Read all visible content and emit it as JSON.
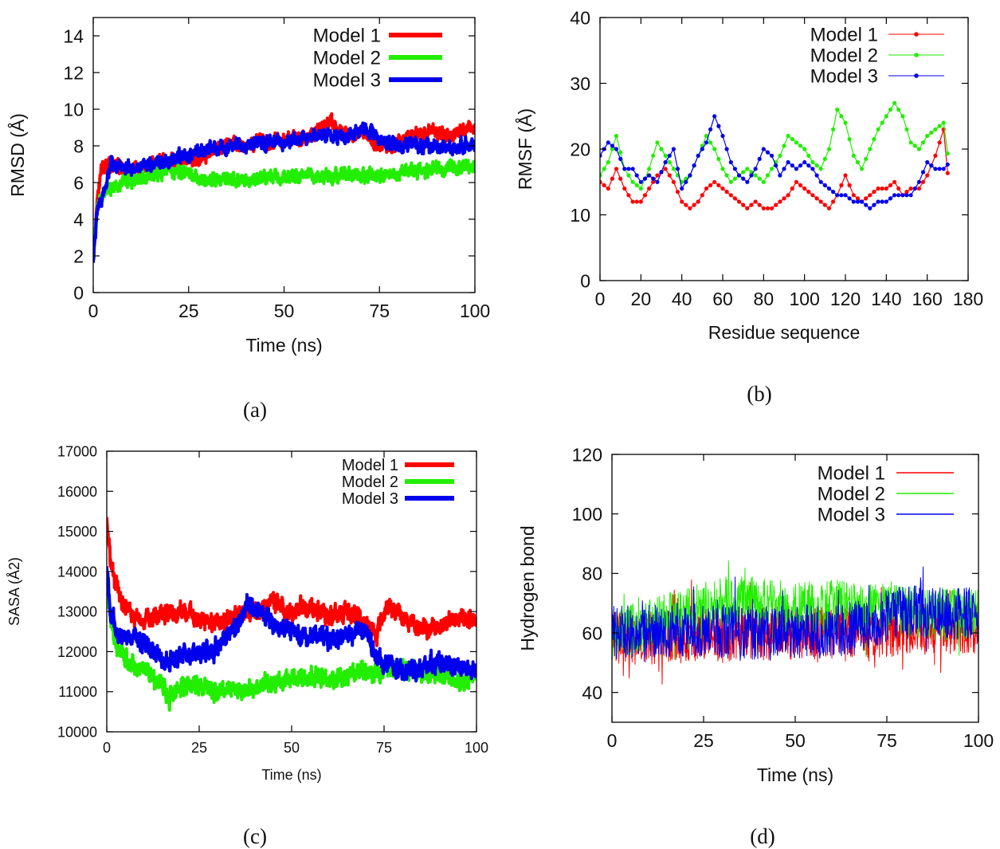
{
  "colors": {
    "model1": "#ff0000",
    "model2": "#22ee00",
    "model3": "#0000ee",
    "axis": "#000000"
  },
  "panels": [
    {
      "id": "a",
      "caption": "(a)",
      "chart_data": {
        "type": "line",
        "xlabel": "Time (ns)",
        "ylabel": "RMSD (Å)",
        "xlim": [
          0,
          100
        ],
        "ylim": [
          0,
          15
        ],
        "xticks": [
          0,
          25,
          50,
          75,
          100
        ],
        "yticks": [
          0,
          2,
          4,
          6,
          8,
          10,
          12,
          14
        ],
        "legend_position": "top-right",
        "legend_style": "thick-line",
        "series": [
          {
            "name": "Model 1",
            "color": "#ff0000",
            "x": [
              0,
              1,
              2,
              3,
              4,
              5,
              6,
              8,
              10,
              12,
              14,
              16,
              18,
              20,
              22,
              25,
              28,
              30,
              33,
              36,
              40,
              43,
              46,
              50,
              53,
              56,
              58,
              60,
              62,
              64,
              66,
              68,
              70,
              72,
              75,
              78,
              80,
              83,
              86,
              90,
              93,
              96,
              100
            ],
            "y": [
              1.8,
              5.0,
              6.6,
              6.9,
              7.0,
              6.8,
              7.0,
              6.7,
              6.6,
              6.8,
              6.9,
              7.0,
              7.2,
              7.4,
              7.1,
              7.2,
              7.3,
              7.6,
              7.9,
              8.2,
              7.9,
              8.3,
              8.2,
              8.2,
              8.5,
              8.3,
              8.8,
              9.1,
              9.3,
              8.9,
              8.6,
              8.5,
              8.8,
              8.5,
              8.0,
              7.9,
              8.3,
              8.5,
              8.7,
              8.8,
              8.6,
              8.8,
              9.0
            ]
          },
          {
            "name": "Model 2",
            "color": "#22ee00",
            "x": [
              0,
              1,
              2,
              4,
              6,
              8,
              10,
              14,
              18,
              20,
              25,
              28,
              30,
              35,
              40,
              45,
              50,
              55,
              60,
              65,
              70,
              75,
              80,
              85,
              90,
              95,
              100
            ],
            "y": [
              1.8,
              4.5,
              5.2,
              5.6,
              5.8,
              6.0,
              6.1,
              6.3,
              6.5,
              6.7,
              6.4,
              6.2,
              6.1,
              6.2,
              6.1,
              6.3,
              6.2,
              6.4,
              6.3,
              6.5,
              6.4,
              6.4,
              6.5,
              6.6,
              6.7,
              6.8,
              6.9
            ]
          },
          {
            "name": "Model 3",
            "color": "#0000ee",
            "x": [
              0,
              1,
              2,
              3,
              4,
              5,
              6,
              8,
              10,
              12,
              15,
              18,
              20,
              25,
              30,
              35,
              40,
              45,
              50,
              55,
              60,
              63,
              66,
              70,
              73,
              76,
              80,
              85,
              90,
              95,
              100
            ],
            "y": [
              1.6,
              4.4,
              5.0,
              5.6,
              6.4,
              7.2,
              7.0,
              6.8,
              6.6,
              6.8,
              7.0,
              7.1,
              7.3,
              7.5,
              7.8,
              7.9,
              8.0,
              8.1,
              8.2,
              8.4,
              8.6,
              8.5,
              8.5,
              8.9,
              8.7,
              8.2,
              8.0,
              8.1,
              8.0,
              7.9,
              8.0
            ]
          }
        ]
      }
    },
    {
      "id": "b",
      "caption": "(b)",
      "chart_data": {
        "type": "line",
        "xlabel": "Residue sequence",
        "ylabel": "RMSF (Å)",
        "xlim": [
          0,
          180
        ],
        "ylim": [
          0,
          40
        ],
        "xticks": [
          0,
          20,
          40,
          60,
          80,
          100,
          120,
          140,
          160,
          180
        ],
        "yticks": [
          0,
          10,
          20,
          30,
          40
        ],
        "legend_position": "top-right",
        "legend_style": "line-point",
        "series": [
          {
            "name": "Model 1",
            "color": "#ff0000",
            "x": [
              0,
              4,
              8,
              12,
              16,
              20,
              24,
              28,
              32,
              36,
              40,
              44,
              48,
              52,
              56,
              60,
              64,
              68,
              72,
              76,
              80,
              84,
              88,
              92,
              96,
              100,
              104,
              108,
              112,
              116,
              120,
              124,
              128,
              132,
              136,
              140,
              144,
              148,
              152,
              156,
              160,
              164,
              168,
              171
            ],
            "y": [
              15,
              14,
              17,
              14,
              12,
              12,
              14,
              16,
              17,
              15,
              12,
              11,
              12,
              14,
              15,
              14,
              13,
              12,
              11,
              12,
              11,
              11,
              12,
              13,
              15,
              14,
              13,
              12,
              11,
              13,
              16,
              13,
              12,
              13,
              14,
              14,
              15,
              13,
              14,
              14,
              16,
              19,
              23,
              13
            ]
          },
          {
            "name": "Model 2",
            "color": "#22ee00",
            "x": [
              0,
              4,
              8,
              12,
              16,
              20,
              24,
              28,
              32,
              36,
              40,
              44,
              48,
              52,
              56,
              60,
              64,
              68,
              72,
              76,
              80,
              84,
              88,
              92,
              96,
              100,
              104,
              108,
              112,
              116,
              120,
              124,
              128,
              132,
              136,
              140,
              144,
              148,
              152,
              156,
              160,
              164,
              168,
              171
            ],
            "y": [
              16,
              18,
              22,
              17,
              15,
              14,
              17,
              21,
              19,
              17,
              15,
              16,
              19,
              22,
              20,
              17,
              15,
              16,
              17,
              16,
              15,
              17,
              19,
              22,
              21,
              20,
              18,
              17,
              20,
              26,
              24,
              19,
              17,
              20,
              23,
              25,
              27,
              25,
              21,
              20,
              22,
              23,
              24,
              17
            ]
          },
          {
            "name": "Model 3",
            "color": "#0000ee",
            "x": [
              0,
              4,
              8,
              12,
              16,
              20,
              24,
              28,
              32,
              36,
              40,
              44,
              48,
              52,
              56,
              60,
              64,
              68,
              72,
              76,
              80,
              84,
              88,
              92,
              96,
              100,
              104,
              108,
              112,
              116,
              120,
              124,
              128,
              132,
              136,
              140,
              144,
              148,
              152,
              156,
              160,
              164,
              168,
              171
            ],
            "y": [
              19,
              21,
              20,
              17,
              17,
              15,
              16,
              15,
              18,
              20,
              14,
              16,
              19,
              21,
              25,
              22,
              18,
              16,
              15,
              17,
              20,
              19,
              16,
              18,
              17,
              18,
              17,
              15,
              14,
              13,
              13,
              12,
              12,
              11,
              12,
              12,
              13,
              13,
              13,
              15,
              18,
              17,
              17,
              18
            ]
          }
        ]
      }
    },
    {
      "id": "c",
      "caption": "(c)",
      "chart_data": {
        "type": "line",
        "xlabel": "Time (ns)",
        "ylabel": "SASA (Å2)",
        "xlim": [
          0,
          100
        ],
        "ylim": [
          10000,
          17000
        ],
        "xticks": [
          0,
          25,
          50,
          75,
          100
        ],
        "yticks": [
          10000,
          11000,
          12000,
          13000,
          14000,
          15000,
          16000,
          17000
        ],
        "legend_position": "top-right",
        "legend_style": "thick-line",
        "series": [
          {
            "name": "Model 1",
            "color": "#ff0000",
            "x": [
              0,
              1,
              2,
              3,
              4,
              6,
              8,
              10,
              13,
              16,
              20,
              25,
              30,
              35,
              40,
              45,
              50,
              55,
              60,
              65,
              70,
              73,
              76,
              80,
              85,
              90,
              95,
              100
            ],
            "y": [
              15300,
              14300,
              13800,
              13600,
              13200,
              13000,
              12800,
              12700,
              12900,
              13000,
              13000,
              12800,
              12700,
              12900,
              13000,
              13200,
              13000,
              13100,
              12900,
              13000,
              12700,
              12400,
              13200,
              12800,
              12600,
              12600,
              12900,
              12700
            ]
          },
          {
            "name": "Model 2",
            "color": "#22ee00",
            "x": [
              0,
              1,
              2,
              3,
              4,
              6,
              8,
              10,
              13,
              16,
              18,
              20,
              25,
              30,
              35,
              40,
              45,
              50,
              55,
              60,
              65,
              70,
              75,
              80,
              85,
              90,
              95,
              100
            ],
            "y": [
              13800,
              13000,
              12300,
              12000,
              11900,
              11700,
              11600,
              11600,
              11300,
              11000,
              10900,
              11100,
              11200,
              11000,
              11000,
              11100,
              11200,
              11300,
              11400,
              11300,
              11400,
              11500,
              11500,
              11600,
              11500,
              11400,
              11300,
              11400
            ]
          },
          {
            "name": "Model 3",
            "color": "#0000ee",
            "x": [
              0,
              1,
              2,
              3,
              4,
              6,
              8,
              10,
              13,
              16,
              20,
              25,
              30,
              35,
              38,
              40,
              45,
              50,
              55,
              60,
              65,
              70,
              73,
              76,
              80,
              85,
              90,
              95,
              100
            ],
            "y": [
              14000,
              13000,
              12700,
              12500,
              12400,
              12300,
              12300,
              12200,
              12000,
              11700,
              11900,
              12000,
              12100,
              12600,
              13200,
              13100,
              12700,
              12500,
              12400,
              12300,
              12400,
              12600,
              11800,
              11700,
              11500,
              11600,
              11700,
              11600,
              11600
            ]
          }
        ]
      }
    },
    {
      "id": "d",
      "caption": "(d)",
      "chart_data": {
        "type": "line",
        "xlabel": "Time (ns)",
        "ylabel": "Hydrogen bond",
        "xlim": [
          0,
          100
        ],
        "ylim": [
          30,
          120
        ],
        "xticks": [
          0,
          25,
          50,
          75,
          100
        ],
        "yticks": [
          40,
          60,
          80,
          100,
          120
        ],
        "legend_position": "top-right",
        "legend_style": "thin-line",
        "series": [
          {
            "name": "Model 1",
            "color": "#ff0000",
            "x": [
              0,
              100
            ],
            "mean": [
              58,
              62
            ],
            "amplitude": 9
          },
          {
            "name": "Model 2",
            "color": "#22ee00",
            "x": [
              0,
              20,
              30,
              40,
              50,
              60,
              70,
              80,
              100
            ],
            "mean": [
              60,
              66,
              70,
              70,
              68,
              69,
              68,
              67,
              66
            ],
            "amplitude": 9
          },
          {
            "name": "Model 3",
            "color": "#0000ee",
            "x": [
              0,
              20,
              40,
              60,
              70,
              75,
              80,
              100
            ],
            "mean": [
              60,
              61,
              60,
              61,
              62,
              66,
              67,
              66
            ],
            "amplitude": 9
          }
        ]
      }
    }
  ]
}
